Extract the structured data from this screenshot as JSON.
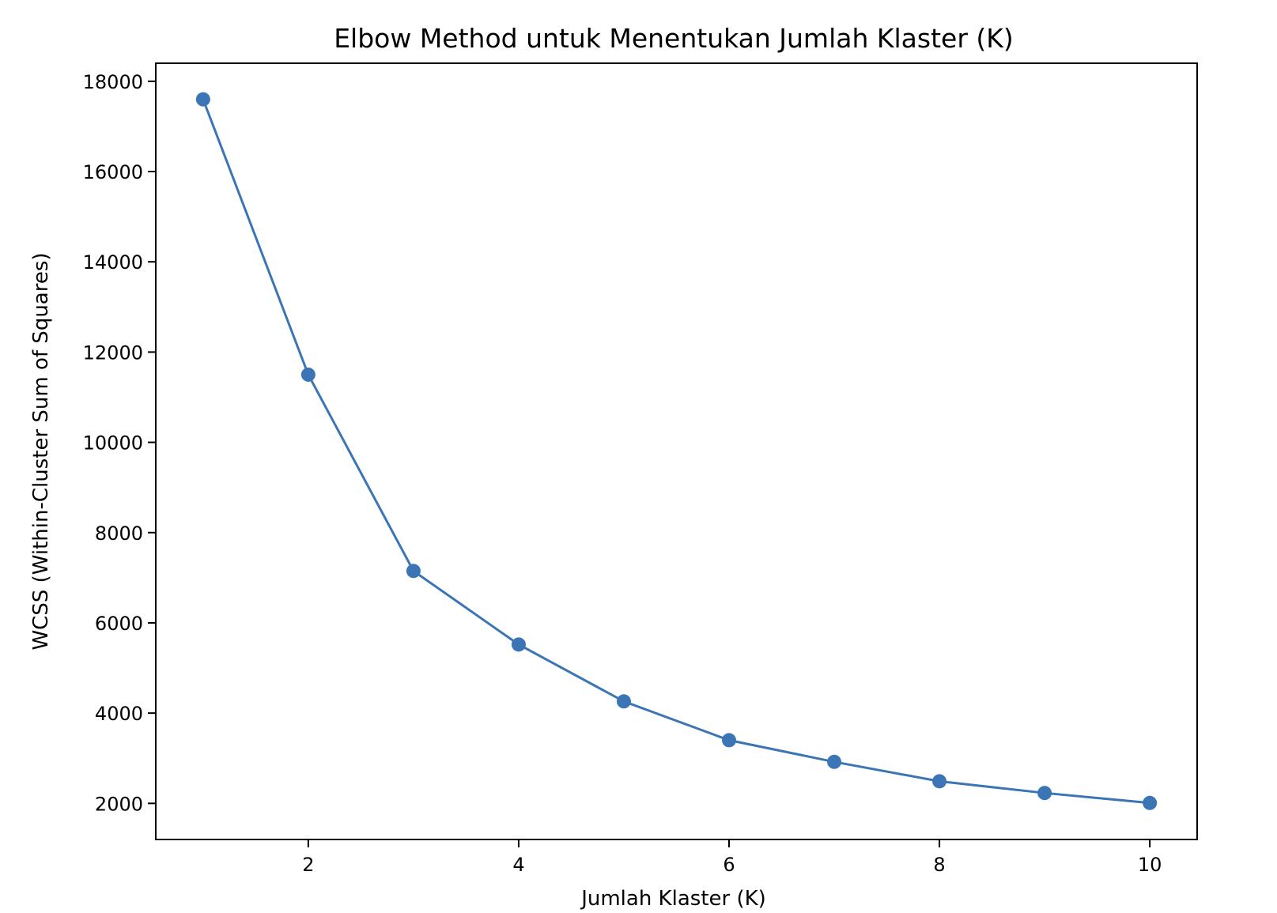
{
  "chart_data": {
    "type": "line",
    "title": "Elbow Method untuk Menentukan Jumlah Klaster (K)",
    "xlabel": "Jumlah Klaster (K)",
    "ylabel": "WCSS (Within-Cluster Sum of Squares)",
    "x": [
      1,
      2,
      3,
      4,
      5,
      6,
      7,
      8,
      9,
      10
    ],
    "series": [
      {
        "values": [
          17600,
          11500,
          7150,
          5520,
          4260,
          3400,
          2920,
          2490,
          2230,
          2010
        ]
      }
    ],
    "xlim": [
      0.55,
      10.45
    ],
    "ylim": [
      1200,
      18400
    ],
    "xticks": [
      2,
      4,
      6,
      8,
      10
    ],
    "yticks": [
      2000,
      4000,
      6000,
      8000,
      10000,
      12000,
      14000,
      16000,
      18000
    ],
    "marker": "circle",
    "grid": false,
    "legend": "none",
    "line_color": "#3b75b5"
  }
}
